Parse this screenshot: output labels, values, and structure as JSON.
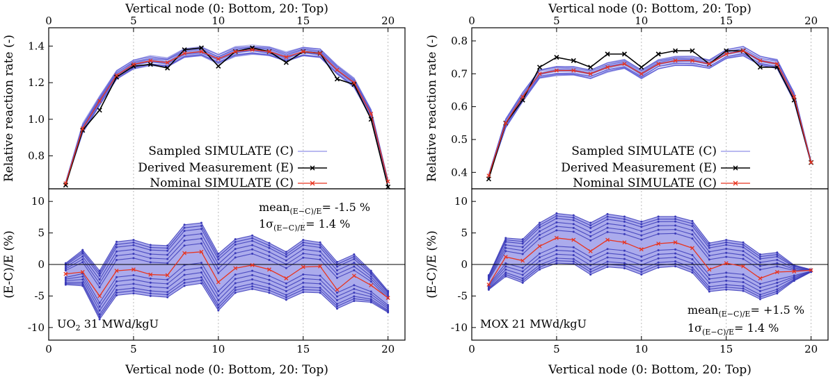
{
  "chart_data": [
    {
      "type": "line",
      "panel": "UO2 reaction rate",
      "xlabel_top": "Vertical node (0: Bottom, 20: Top)",
      "ylabel": "Relative reaction rate (-)",
      "xlim": [
        0,
        21
      ],
      "ylim": [
        0.62,
        1.5
      ],
      "x_ticks": [
        "0",
        "5",
        "10",
        "15",
        "20"
      ],
      "y_ticks": [
        "1.4",
        "1.2",
        "1.0",
        "0.8"
      ],
      "x": [
        1,
        2,
        3,
        4,
        5,
        6,
        7,
        8,
        9,
        10,
        11,
        12,
        13,
        14,
        15,
        16,
        17,
        18,
        19,
        20
      ],
      "series": [
        {
          "name": "Derived Measurement (E)",
          "color": "#000000",
          "values": [
            0.64,
            0.94,
            1.05,
            1.23,
            1.29,
            1.3,
            1.28,
            1.38,
            1.39,
            1.29,
            1.37,
            1.39,
            1.37,
            1.31,
            1.37,
            1.36,
            1.22,
            1.19,
            1.0,
            0.63
          ]
        },
        {
          "name": "Nominal SIMULATE (C)",
          "color": "#e8331e",
          "values": [
            0.65,
            0.95,
            1.1,
            1.24,
            1.3,
            1.32,
            1.31,
            1.36,
            1.37,
            1.33,
            1.37,
            1.38,
            1.37,
            1.34,
            1.37,
            1.36,
            1.27,
            1.2,
            1.03,
            0.66
          ]
        }
      ],
      "band_color": "#5b5bd6",
      "legend": [
        "Sampled SIMULATE (C)",
        "Derived Measurement (E)",
        "Nominal SIMULATE (C)"
      ],
      "legend_position": "bottom-center"
    },
    {
      "type": "line",
      "panel": "MOX reaction rate",
      "xlabel_top": "Vertical node (0: Bottom, 20: Top)",
      "ylabel": "Relative reaction rate (-)",
      "xlim": [
        0,
        21
      ],
      "ylim": [
        0.35,
        0.84
      ],
      "x_ticks": [
        "0",
        "5",
        "10",
        "15",
        "20"
      ],
      "y_ticks": [
        "0.8",
        "0.7",
        "0.6",
        "0.5",
        "0.4"
      ],
      "x": [
        1,
        2,
        3,
        4,
        5,
        6,
        7,
        8,
        9,
        10,
        11,
        12,
        13,
        14,
        15,
        16,
        17,
        18,
        19,
        20
      ],
      "series": [
        {
          "name": "Derived Measurement (E)",
          "color": "#000000",
          "values": [
            0.38,
            0.55,
            0.62,
            0.72,
            0.75,
            0.74,
            0.72,
            0.76,
            0.76,
            0.72,
            0.76,
            0.77,
            0.77,
            0.73,
            0.77,
            0.77,
            0.72,
            0.72,
            0.62,
            0.43
          ]
        },
        {
          "name": "Nominal SIMULATE (C)",
          "color": "#e8331e",
          "values": [
            0.39,
            0.55,
            0.63,
            0.7,
            0.71,
            0.71,
            0.7,
            0.72,
            0.73,
            0.7,
            0.73,
            0.74,
            0.74,
            0.73,
            0.76,
            0.77,
            0.74,
            0.73,
            0.63,
            0.43
          ]
        }
      ],
      "band_color": "#5b5bd6",
      "legend": [
        "Sampled SIMULATE (C)",
        "Derived Measurement (E)",
        "Nominal SIMULATE (C)"
      ],
      "legend_position": "bottom-center"
    },
    {
      "type": "line",
      "panel": "UO2 deviation",
      "xlabel": "Vertical node (0: Bottom, 20: Top)",
      "ylabel": "(E-C)/E (%)",
      "xlim": [
        0,
        21
      ],
      "ylim": [
        -12,
        12
      ],
      "x_ticks": [
        "0",
        "5",
        "10",
        "15",
        "20"
      ],
      "y_ticks": [
        "10",
        "5",
        "0",
        "-5",
        "-10"
      ],
      "x": [
        1,
        2,
        3,
        4,
        5,
        6,
        7,
        8,
        9,
        10,
        11,
        12,
        13,
        14,
        15,
        16,
        17,
        18,
        19,
        20
      ],
      "nominal": [
        -1.5,
        -1.2,
        -5.0,
        -1.0,
        -0.8,
        -1.6,
        -1.7,
        1.8,
        2.0,
        -2.8,
        -0.6,
        -0.1,
        -0.8,
        -2.2,
        -0.4,
        -0.3,
        -4.0,
        -1.8,
        -3.3,
        -5.3
      ],
      "upper": [
        0.2,
        2.3,
        -1.0,
        3.6,
        3.9,
        3.1,
        3.0,
        6.3,
        6.6,
        1.7,
        4.0,
        4.6,
        3.4,
        2.0,
        3.9,
        3.5,
        0.4,
        1.6,
        -1.0,
        -4.2
      ],
      "lower": [
        -3.2,
        -3.4,
        -8.7,
        -4.9,
        -4.6,
        -5.0,
        -5.2,
        -3.4,
        -3.0,
        -7.3,
        -4.5,
        -3.9,
        -4.5,
        -5.6,
        -4.4,
        -4.5,
        -7.0,
        -5.8,
        -6.0,
        -7.6
      ],
      "mean_label": "mean",
      "mean_subscript": "(E−C)/E",
      "mean_value": "= -1.5 %",
      "sigma_label": "1σ",
      "sigma_subscript": "(E−C)/E",
      "sigma_value": "= 1.4 %",
      "case_label": "UO",
      "case_subscript": "2",
      "case_rest": " 31 MWd/kgU"
    },
    {
      "type": "line",
      "panel": "MOX deviation",
      "xlabel": "Vertical node (0: Bottom, 20: Top)",
      "ylabel": "(E-C)/E (%)",
      "xlim": [
        0,
        21
      ],
      "ylim": [
        -12,
        12
      ],
      "x_ticks": [
        "0",
        "5",
        "10",
        "15",
        "20"
      ],
      "y_ticks": [
        "10",
        "5",
        "0",
        "-5",
        "-10"
      ],
      "x": [
        1,
        2,
        3,
        4,
        5,
        6,
        7,
        8,
        9,
        10,
        11,
        12,
        13,
        14,
        15,
        16,
        17,
        18,
        19,
        20
      ],
      "nominal": [
        -3.2,
        1.2,
        0.6,
        2.9,
        4.2,
        3.9,
        2.1,
        3.9,
        3.5,
        2.4,
        3.3,
        3.5,
        2.6,
        -0.8,
        0.2,
        -0.3,
        -2.2,
        -1.2,
        -1.1,
        -0.9
      ],
      "upper": [
        -1.7,
        4.2,
        4.0,
        6.6,
        8.1,
        7.8,
        6.6,
        8.0,
        7.6,
        6.8,
        7.6,
        7.6,
        6.9,
        3.4,
        3.9,
        3.5,
        1.6,
        1.9,
        -0.1,
        -0.8
      ],
      "lower": [
        -4.0,
        -1.9,
        -2.9,
        -0.8,
        0.2,
        0.1,
        -1.6,
        -0.4,
        -0.6,
        -1.6,
        -0.5,
        -0.3,
        -1.3,
        -4.3,
        -4.0,
        -4.2,
        -5.5,
        -4.6,
        -2.6,
        -1.2
      ],
      "mean_label": "mean",
      "mean_subscript": "(E−C)/E",
      "mean_value": "= +1.5 %",
      "sigma_label": "1σ",
      "sigma_subscript": "(E−C)/E",
      "sigma_value": "= 1.4 %",
      "case_label": "MOX 21 MWd/kgU"
    }
  ]
}
